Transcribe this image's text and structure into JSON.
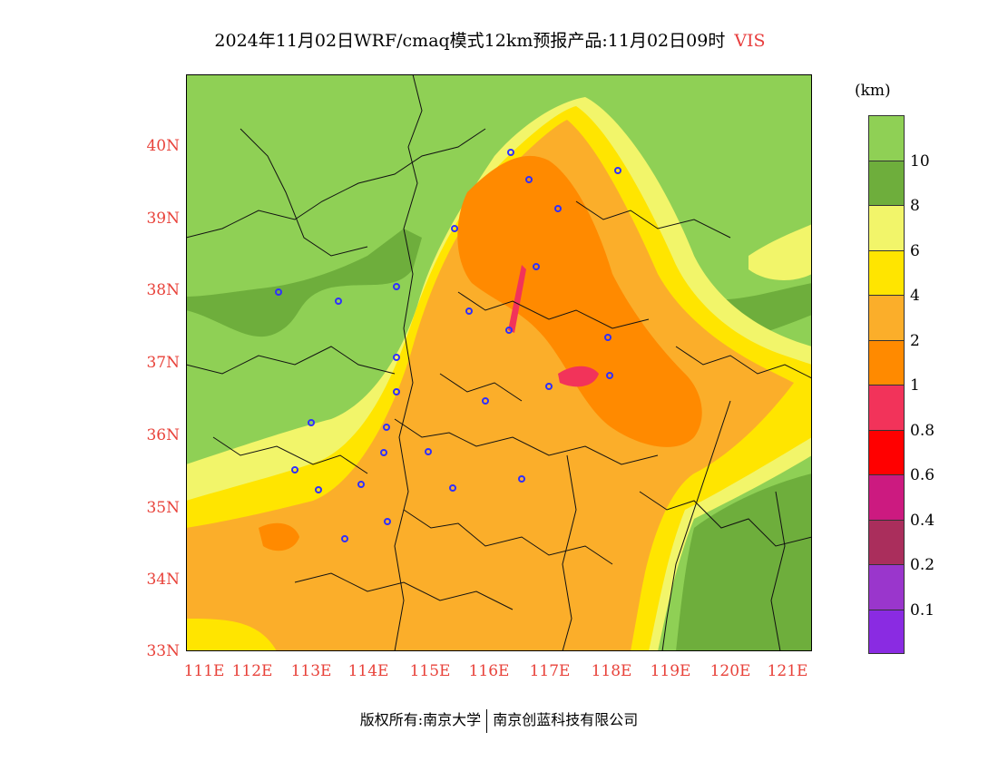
{
  "title": {
    "text": "2024年11月02日WRF/cmaq模式12km预报产品:11月02日09时",
    "variable": "VIS"
  },
  "map": {
    "lat_ticks": [
      "40N",
      "39N",
      "38N",
      "37N",
      "36N",
      "35N",
      "34N",
      "33N"
    ],
    "lon_ticks": [
      "111E",
      "112E",
      "113E",
      "114E",
      "115E",
      "116E",
      "117E",
      "118E",
      "119E",
      "120E",
      "121E"
    ],
    "background_color": "#8fd055"
  },
  "legend": {
    "unit": "(km)",
    "colors": [
      "#8fd055",
      "#6eae3c",
      "#f2f56a",
      "#ffe500",
      "#fbae2a",
      "#ff8a00",
      "#f2335a",
      "#ff0000",
      "#cc1a80",
      "#aa2e5c",
      "#9a36cc",
      "#8a2be2"
    ],
    "labels": [
      "10",
      "8",
      "6",
      "4",
      "2",
      "1",
      "0.8",
      "0.6",
      "0.4",
      "0.2",
      "0.1"
    ]
  },
  "footer": {
    "left": "版权所有:南京大学",
    "right": "南京创蓝科技有限公司"
  }
}
